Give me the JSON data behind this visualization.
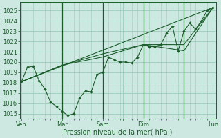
{
  "background_color": "#cce8e0",
  "grid_color": "#99ccbb",
  "line_color": "#1a5c2a",
  "xlabel": "Pression niveau de la mer( hPa )",
  "ylim": [
    1014.5,
    1025.8
  ],
  "yticks": [
    1015,
    1016,
    1017,
    1018,
    1019,
    1020,
    1021,
    1022,
    1023,
    1024,
    1025
  ],
  "xlim": [
    -0.3,
    33.5
  ],
  "vline_positions": [
    7,
    14,
    21,
    28
  ],
  "xtick_positions": [
    0,
    7,
    14,
    17.5,
    21,
    28,
    33
  ],
  "xtick_labels": [
    "Ven",
    "Mar",
    "Sam",
    "",
    "Dim",
    "",
    "Lun"
  ],
  "series_main": {
    "x": [
      0,
      1,
      2,
      3,
      4,
      5,
      6,
      7,
      8,
      9,
      10,
      11,
      12,
      13,
      14,
      15,
      16,
      17,
      18,
      19,
      20,
      21,
      22,
      23,
      24,
      25,
      26,
      27,
      28,
      29,
      30,
      31,
      32,
      33
    ],
    "y": [
      1018.1,
      1019.5,
      1019.6,
      1018.2,
      1017.4,
      1016.1,
      1015.7,
      1015.2,
      1014.8,
      1015.0,
      1016.5,
      1017.2,
      1017.1,
      1018.8,
      1019.0,
      1020.5,
      1020.2,
      1020.0,
      1020.0,
      1019.9,
      1020.5,
      1021.7,
      1021.5,
      1021.5,
      1021.7,
      1022.8,
      1023.5,
      1021.1,
      1023.0,
      1023.8,
      1023.2,
      1024.0,
      1025.0,
      1025.3
    ]
  },
  "series_upper": {
    "x": [
      0,
      33
    ],
    "y": [
      1018.1,
      1025.3
    ]
  },
  "series_env1": {
    "x": [
      0,
      7,
      14,
      21,
      28,
      33
    ],
    "y": [
      1018.1,
      1019.7,
      1020.5,
      1021.7,
      1021.1,
      1025.3
    ]
  },
  "series_env2": {
    "x": [
      0,
      7,
      14,
      21,
      28,
      33
    ],
    "y": [
      1018.1,
      1019.7,
      1020.8,
      1021.7,
      1021.7,
      1025.3
    ]
  }
}
